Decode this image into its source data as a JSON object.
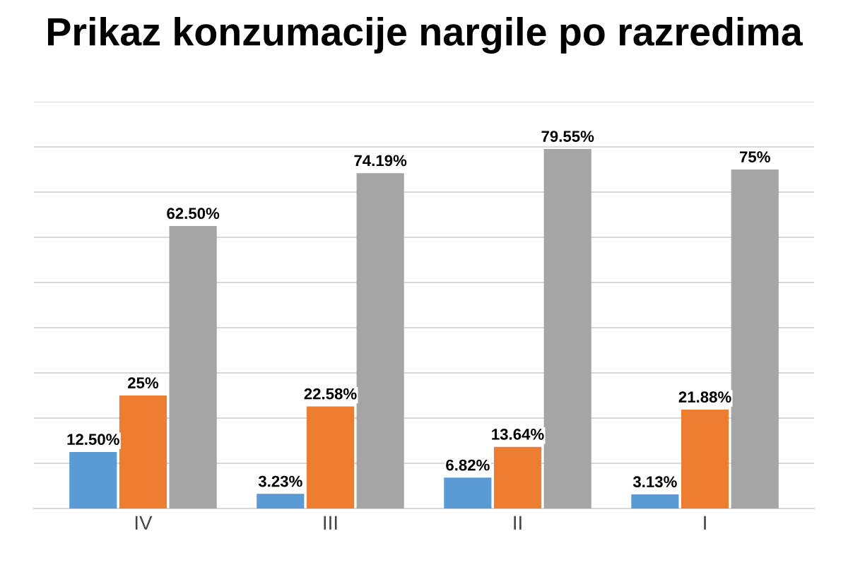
{
  "chart_data": {
    "type": "bar",
    "title": "Prikaz konzumacije nargile po razredima",
    "categories": [
      "IV",
      "III",
      "II",
      "I"
    ],
    "series": [
      {
        "color": "#5b9bd5",
        "values": [
          12.5,
          3.23,
          6.82,
          3.13
        ],
        "value_labels": [
          "12.50%",
          "3.23%",
          "6.82%",
          "3.13%"
        ]
      },
      {
        "color": "#ed7d31",
        "values": [
          25,
          22.58,
          13.64,
          21.88
        ],
        "value_labels": [
          "25%",
          "22.58%",
          "13.64%",
          "21.88%"
        ]
      },
      {
        "color": "#a5a5a5",
        "values": [
          62.5,
          74.19,
          79.55,
          75
        ],
        "value_labels": [
          "62.50%",
          "74.19%",
          "79.55%",
          "75%"
        ]
      }
    ],
    "ylim": [
      0,
      90
    ],
    "yticks": [
      {
        "value": 0,
        "label": null
      },
      {
        "value": 10,
        "label": null
      },
      {
        "value": 20,
        "label": null
      },
      {
        "value": 30,
        "label": null
      },
      {
        "value": 40,
        "label": null
      },
      {
        "value": 50,
        "label": null
      },
      {
        "value": 60,
        "label": null
      },
      {
        "value": 70,
        "label": null
      },
      {
        "value": 80,
        "label": null
      },
      {
        "value": 90,
        "label": null
      }
    ],
    "grid": "y",
    "tick_labels": "x",
    "legend": false
  }
}
